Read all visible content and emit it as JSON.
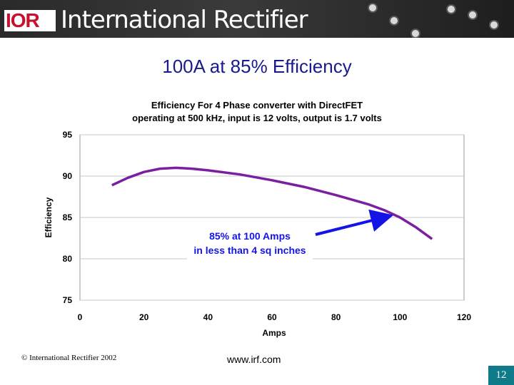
{
  "header": {
    "logo_text": "IOR",
    "company_name": "International Rectifier"
  },
  "slide": {
    "title": "100A at 85% Efficiency",
    "footer_copyright": "© International Rectifier 2002",
    "footer_url": "www.irf.com",
    "page_number": "12"
  },
  "colors": {
    "title": "#1a1a8c",
    "series_line": "#7b1fa2",
    "annotation": "#1414e6",
    "page_badge": "#0f7a8a"
  },
  "chart_data": {
    "type": "line",
    "title_lines": [
      "Efficiency For 4 Phase converter with DirectFET",
      "operating at 500 kHz, input is 12 volts, output is 1.7 volts"
    ],
    "xlabel": "Amps",
    "ylabel": "Efficiency",
    "xlim": [
      0,
      120
    ],
    "ylim": [
      75,
      95
    ],
    "xticks": [
      0,
      20,
      40,
      60,
      80,
      100,
      120
    ],
    "yticks": [
      75,
      80,
      85,
      90,
      95
    ],
    "grid": true,
    "series": [
      {
        "x": [
          10,
          15,
          20,
          25,
          30,
          35,
          40,
          50,
          60,
          70,
          80,
          90,
          95,
          100,
          105,
          110
        ],
        "y": [
          88.9,
          89.8,
          90.5,
          90.9,
          91.0,
          90.9,
          90.7,
          90.2,
          89.5,
          88.7,
          87.7,
          86.6,
          85.9,
          85.0,
          83.8,
          82.4
        ]
      }
    ],
    "annotation": {
      "lines": [
        "85% at 100 Amps",
        "in less than 4 sq inches"
      ],
      "arrow_to": {
        "x": 98,
        "y": 85.3
      }
    }
  }
}
